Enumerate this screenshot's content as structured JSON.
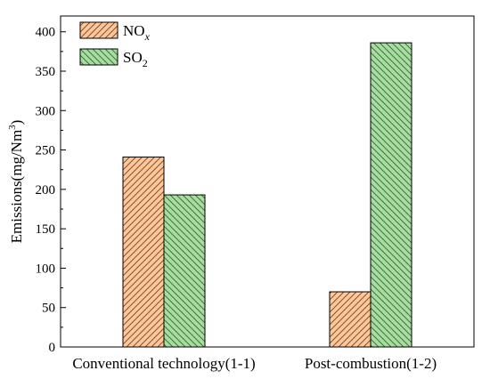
{
  "chart_data": {
    "type": "bar",
    "categories": [
      "Conventional technology(1-1)",
      "Post-combustion(1-2)"
    ],
    "series": [
      {
        "name": "NO",
        "name_subscript": "x",
        "values": [
          241,
          70
        ],
        "color": "#f9c89b",
        "hatch_color": "#8b3a1a",
        "hatch": "diagonal-down"
      },
      {
        "name": "SO",
        "name_subscript": "2",
        "values": [
          193,
          386
        ],
        "color": "#a8dca0",
        "hatch_color": "#2e6b2e",
        "hatch": "diagonal-up"
      }
    ],
    "xlabel": "",
    "ylabel": "Emissions(mg/Nm",
    "ylabel_superscript": "3",
    "ylabel_suffix": ")",
    "ylim": [
      0,
      420
    ],
    "yticks": [
      "0",
      "50",
      "100",
      "150",
      "200",
      "250",
      "300",
      "350",
      "400"
    ],
    "grid": false,
    "legend_position": "top-left"
  }
}
